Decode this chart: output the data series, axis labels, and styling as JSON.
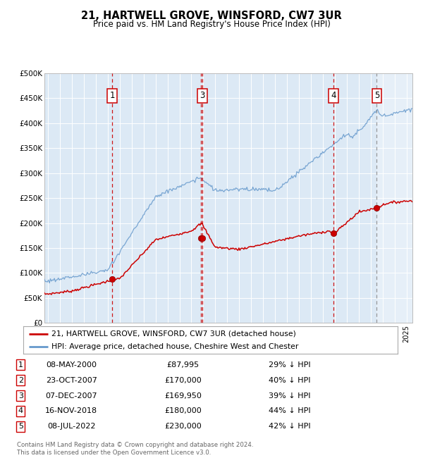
{
  "title": "21, HARTWELL GROVE, WINSFORD, CW7 3UR",
  "subtitle": "Price paid vs. HM Land Registry's House Price Index (HPI)",
  "footnote1": "Contains HM Land Registry data © Crown copyright and database right 2024.",
  "footnote2": "This data is licensed under the Open Government Licence v3.0.",
  "legend_label_red": "21, HARTWELL GROVE, WINSFORD, CW7 3UR (detached house)",
  "legend_label_blue": "HPI: Average price, detached house, Cheshire West and Chester",
  "table": [
    {
      "num": 1,
      "date": "08-MAY-2000",
      "price": "£87,995",
      "pct": "29% ↓ HPI"
    },
    {
      "num": 2,
      "date": "23-OCT-2007",
      "price": "£170,000",
      "pct": "40% ↓ HPI"
    },
    {
      "num": 3,
      "date": "07-DEC-2007",
      "price": "£169,950",
      "pct": "39% ↓ HPI"
    },
    {
      "num": 4,
      "date": "16-NOV-2018",
      "price": "£180,000",
      "pct": "44% ↓ HPI"
    },
    {
      "num": 5,
      "date": "08-JUL-2022",
      "price": "£230,000",
      "pct": "42% ↓ HPI"
    }
  ],
  "sale_years": [
    2000.36,
    2007.81,
    2007.93,
    2018.88,
    2022.52
  ],
  "sale_prices": [
    87995,
    170000,
    169950,
    180000,
    230000
  ],
  "vline_years_red": [
    2000.36,
    2007.93,
    2018.88
  ],
  "vline_year_oct2007": 2007.81,
  "vline_year_gray": 2022.52,
  "ylim": [
    0,
    500000
  ],
  "xlim_start": 1994.7,
  "xlim_end": 2025.5,
  "background_color": "#dce9f5",
  "red_line_color": "#cc0000",
  "blue_line_color": "#6699cc",
  "red_dot_color": "#cc0000",
  "vline_red_color": "#cc0000",
  "vline_gray_color": "#888888",
  "box_color": "#cc0000",
  "hatch_color": "#b8cfe0"
}
